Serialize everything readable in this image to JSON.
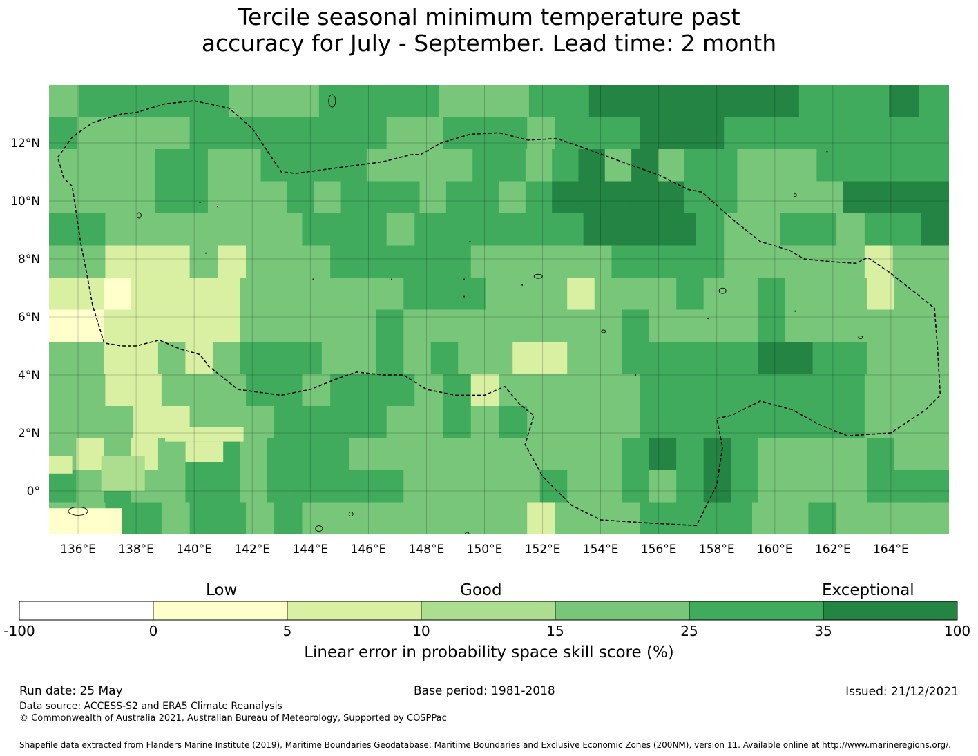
{
  "title_line1": "Tercile seasonal minimum temperature past",
  "title_line2": "accuracy for July - September. Lead time: 2 month",
  "colors": {
    "c_0_5": "#ffffcc",
    "c_5_10": "#d9f0a3",
    "c_10_15": "#addd8e",
    "c_15_25": "#78c679",
    "c_25_35": "#41ab5d",
    "c_35_100": "#238443",
    "boundary": "#000000"
  },
  "map": {
    "lon_range": [
      135,
      166
    ],
    "lat_range": [
      -1.5,
      14
    ],
    "x_ticks": [
      "136°E",
      "138°E",
      "140°E",
      "142°E",
      "144°E",
      "146°E",
      "148°E",
      "150°E",
      "152°E",
      "154°E",
      "156°E",
      "158°E",
      "160°E",
      "162°E",
      "164°E"
    ],
    "y_ticks": [
      "12°N",
      "10°N",
      "8°N",
      "6°N",
      "4°N",
      "2°N",
      "0°"
    ],
    "gridlines": true,
    "boundary_style": "dashed",
    "boundary_lonlat": [
      [
        135.3,
        11.5
      ],
      [
        135.8,
        12.2
      ],
      [
        136.5,
        12.7
      ],
      [
        137.5,
        13.0
      ],
      [
        138.0,
        13.05
      ],
      [
        139.0,
        13.35
      ],
      [
        140.0,
        13.45
      ],
      [
        141.2,
        13.2
      ],
      [
        142.0,
        12.5
      ],
      [
        143.0,
        11.0
      ],
      [
        143.5,
        10.95
      ],
      [
        145.0,
        11.15
      ],
      [
        146.5,
        11.35
      ],
      [
        147.5,
        11.6
      ],
      [
        147.8,
        11.6
      ],
      [
        148.5,
        12.0
      ],
      [
        149.5,
        12.3
      ],
      [
        150.5,
        12.35
      ],
      [
        151.5,
        12.1
      ],
      [
        152.5,
        12.15
      ],
      [
        153.5,
        11.8
      ],
      [
        155.0,
        11.25
      ],
      [
        156.0,
        10.9
      ],
      [
        157.0,
        10.4
      ],
      [
        157.5,
        10.3
      ],
      [
        158.5,
        9.4
      ],
      [
        159.5,
        8.6
      ],
      [
        160.5,
        8.3
      ],
      [
        161.0,
        8.0
      ],
      [
        162.0,
        7.9
      ],
      [
        162.8,
        7.85
      ],
      [
        163.2,
        8.05
      ],
      [
        164.0,
        7.5
      ],
      [
        165.5,
        6.3
      ],
      [
        165.6,
        5.0
      ],
      [
        165.7,
        3.3
      ],
      [
        165.2,
        2.8
      ],
      [
        164.0,
        2.0
      ],
      [
        162.5,
        1.9
      ],
      [
        161.5,
        2.3
      ],
      [
        160.6,
        2.8
      ],
      [
        159.5,
        3.1
      ],
      [
        158.5,
        2.6
      ],
      [
        158.0,
        2.5
      ],
      [
        158.2,
        1.5
      ],
      [
        158.0,
        0.2
      ],
      [
        157.3,
        -1.2
      ],
      [
        155.5,
        -1.1
      ],
      [
        154.0,
        -1.0
      ],
      [
        153.0,
        -0.5
      ],
      [
        152.0,
        0.5
      ],
      [
        151.4,
        1.6
      ],
      [
        151.7,
        2.6
      ],
      [
        151.2,
        3.0
      ],
      [
        150.7,
        3.6
      ],
      [
        150.0,
        3.3
      ],
      [
        149.0,
        3.3
      ],
      [
        148.0,
        3.5
      ],
      [
        147.2,
        4.0
      ],
      [
        146.5,
        4.0
      ],
      [
        145.6,
        4.1
      ],
      [
        145.0,
        3.9
      ],
      [
        144.0,
        3.5
      ],
      [
        143.0,
        3.3
      ],
      [
        141.5,
        3.5
      ],
      [
        140.5,
        4.3
      ],
      [
        140.2,
        4.7
      ],
      [
        139.5,
        4.9
      ],
      [
        138.8,
        5.2
      ],
      [
        138.0,
        5.0
      ],
      [
        137.5,
        5.0
      ],
      [
        136.9,
        5.1
      ],
      [
        136.5,
        6.4
      ],
      [
        136.3,
        7.5
      ],
      [
        136.1,
        8.5
      ],
      [
        135.8,
        10.5
      ],
      [
        135.7,
        10.6
      ],
      [
        135.5,
        10.8
      ],
      [
        135.3,
        11.5
      ]
    ],
    "skill_rows": [
      "455555444555544455666666655565",
      "54444555555544555455566655555555",
      "4444554455554444554564645544455555",
      "4444554445455545545666665544446666",
      "55444444455545555556666544554556",
      "44333434445555544444555544444344",
      "332333344444455544434445445444344",
      "223333344444544444444544445444444",
      "443343455544545443344555556655444",
      "44334445545554534444455555555444",
      "44433444555544545444455555555444",
      "434345545554444444444565654444544",
      "545445545555544444544545654444555",
      "44554554544444444344455554454444"
    ]
  },
  "colorbar": {
    "categories": [
      "Low",
      "Good",
      "Exceptional"
    ],
    "ticks": [
      "-100",
      "0",
      "5",
      "10",
      "15",
      "25",
      "35",
      "100"
    ],
    "label": "Linear error in probability space skill score (%)"
  },
  "footer": {
    "run_date": "Run date: 25 May",
    "base_period": "Base period: 1981-2018",
    "issued": "Issued: 21/12/2021",
    "data_source": "Data source: ACCESS-S2 and ERA5 Climate Reanalysis",
    "copyright": "© Commonwealth of Australia 2021, Australian Bureau of Meteorology, Supported by COSPPac",
    "shapefile": "Shapefile data extracted from Flanders Marine Institute (2019), Maritime Boundaries Geodatabase: Maritime Boundaries and Exclusive Economic Zones (200NM), version 11. Available online at http://www.marineregions.org/."
  }
}
